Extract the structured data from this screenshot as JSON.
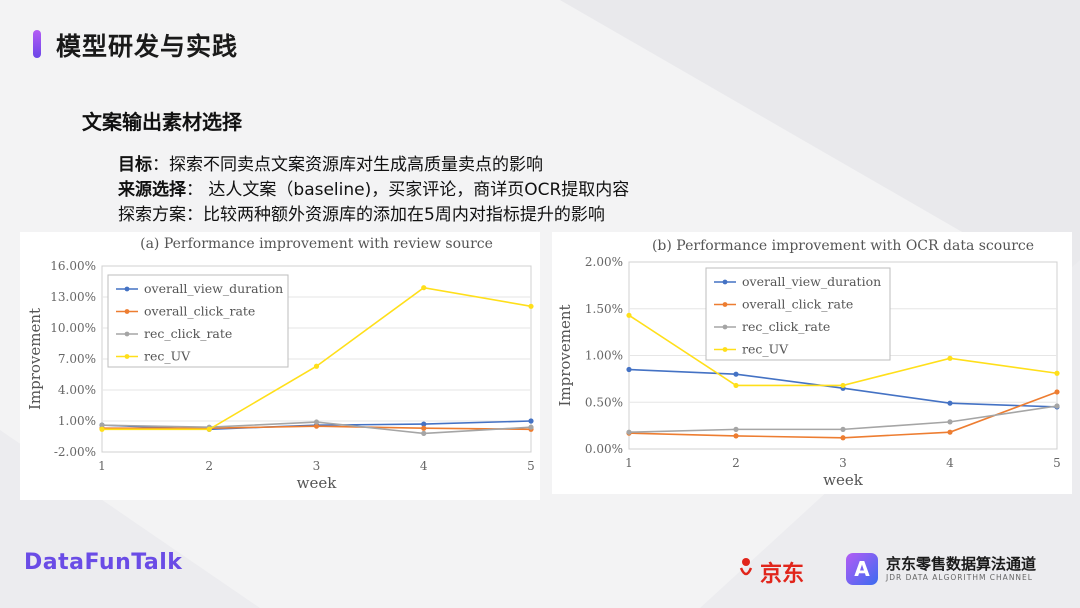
{
  "page": {
    "title": "模型研发与实践",
    "section": "文案输出素材选择",
    "lines": [
      {
        "label": "目标",
        "text": "：探索不同卖点文案资源库对生成高质量卖点的影响"
      },
      {
        "label": "来源选择",
        "text": "： 达人文案（baseline)，买家评论，商详页OCR提取内容"
      },
      {
        "label": "",
        "text": "探索方案：比较两种额外资源库的添加在5周内对指标提升的影响"
      }
    ],
    "brand": "DataFunTalk",
    "logo_jd": "京东",
    "logo_channel_cn": "京东零售数据算法通道",
    "logo_channel_en": "JDR DATA ALGORITHM CHANNEL"
  },
  "colors": {
    "overall_view_duration": "#4472c4",
    "overall_click_rate": "#ed7d31",
    "rec_click_rate": "#a5a5a5",
    "rec_UV": "#ffdf1a"
  },
  "chart_data": [
    {
      "type": "line",
      "title": "(a) Performance improvement with review source",
      "xlabel": "week",
      "ylabel": "Improvement",
      "x": [
        1,
        2,
        3,
        4,
        5
      ],
      "ylim": [
        -2.0,
        16.0
      ],
      "yticks": [
        "-2.00%",
        "1.00%",
        "4.00%",
        "7.00%",
        "10.00%",
        "13.00%",
        "16.00%"
      ],
      "legend_position": "top-left",
      "series": [
        {
          "name": "overall_view_duration",
          "values": [
            0.6,
            0.2,
            0.6,
            0.7,
            1.0
          ]
        },
        {
          "name": "overall_click_rate",
          "values": [
            0.3,
            0.3,
            0.5,
            0.3,
            0.2
          ]
        },
        {
          "name": "rec_click_rate",
          "values": [
            0.6,
            0.4,
            0.9,
            -0.2,
            0.4
          ]
        },
        {
          "name": "rec_UV",
          "values": [
            0.2,
            0.2,
            6.3,
            13.9,
            12.1
          ]
        }
      ]
    },
    {
      "type": "line",
      "title": "(b) Performance improvement with OCR data scource",
      "xlabel": "week",
      "ylabel": "Improvement",
      "x": [
        1,
        2,
        3,
        4,
        5
      ],
      "ylim": [
        0.0,
        2.0
      ],
      "yticks": [
        "0.00%",
        "0.50%",
        "1.00%",
        "1.50%",
        "2.00%"
      ],
      "legend_position": "top-left",
      "series": [
        {
          "name": "overall_view_duration",
          "values": [
            0.85,
            0.8,
            0.65,
            0.49,
            0.45
          ]
        },
        {
          "name": "overall_click_rate",
          "values": [
            0.17,
            0.14,
            0.12,
            0.18,
            0.61
          ]
        },
        {
          "name": "rec_click_rate",
          "values": [
            0.18,
            0.21,
            0.21,
            0.29,
            0.46
          ]
        },
        {
          "name": "rec_UV",
          "values": [
            1.43,
            0.68,
            0.68,
            0.97,
            0.81
          ]
        }
      ]
    }
  ]
}
